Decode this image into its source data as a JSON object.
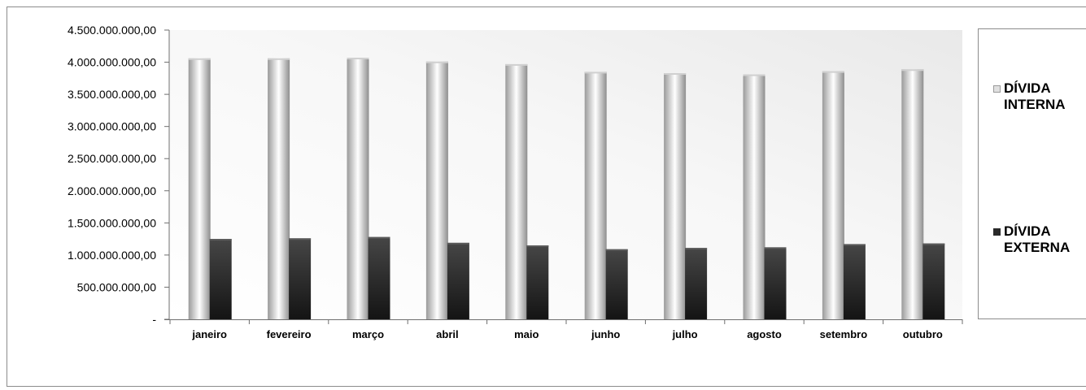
{
  "chart_data": {
    "type": "bar",
    "title": "",
    "xlabel": "",
    "ylabel": "",
    "categories": [
      "janeiro",
      "fevereiro",
      "março",
      "abril",
      "maio",
      "junho",
      "julho",
      "agosto",
      "setembro",
      "outubro"
    ],
    "series": [
      {
        "name": "DÍVIDA INTERNA",
        "name_lines": [
          "DÍVIDA",
          "INTERNA"
        ],
        "color": "#b4b4b4",
        "values": [
          4060000000,
          4060000000,
          4070000000,
          4010000000,
          3970000000,
          3850000000,
          3830000000,
          3810000000,
          3860000000,
          3890000000
        ]
      },
      {
        "name": "DÍVIDA EXTERNA",
        "name_lines": [
          "DÍVIDA",
          "EXTERNA"
        ],
        "color": "#2a2a2a",
        "values": [
          1250000000,
          1260000000,
          1280000000,
          1190000000,
          1150000000,
          1090000000,
          1110000000,
          1120000000,
          1170000000,
          1180000000
        ]
      }
    ],
    "ylim": [
      0,
      4500000000
    ],
    "yticks": [
      0,
      500000000,
      1000000000,
      1500000000,
      2000000000,
      2500000000,
      3000000000,
      3500000000,
      4000000000,
      4500000000
    ],
    "ytick_labels": [
      "-",
      "500.000.000,00",
      "1.000.000.000,00",
      "1.500.000.000,00",
      "2.000.000.000,00",
      "2.500.000.000,00",
      "3.000.000.000,00",
      "3.500.000.000,00",
      "4.000.000.000,00",
      "4.500.000.000,00"
    ],
    "grid": false,
    "legend_position": "right"
  }
}
